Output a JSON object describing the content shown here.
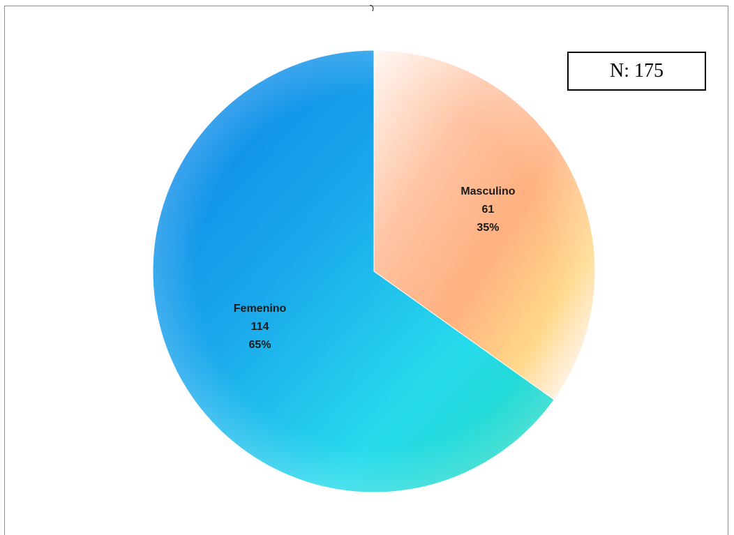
{
  "chart_data": {
    "type": "pie",
    "total_label": "N: 175",
    "total": 175,
    "slices": [
      {
        "category": "Masculino",
        "value": 61,
        "percent_label": "35%",
        "colors": [
          "#fff5ee",
          "#ffb48c",
          "#ffd58a",
          "#f4b3e2"
        ]
      },
      {
        "category": "Femenino",
        "value": 114,
        "percent_label": "65%",
        "colors": [
          "#0b86e8",
          "#19a6ea",
          "#26d9ea",
          "#1fd9c2"
        ]
      }
    ],
    "start_angle_deg": 0,
    "direction": "clockwise"
  }
}
